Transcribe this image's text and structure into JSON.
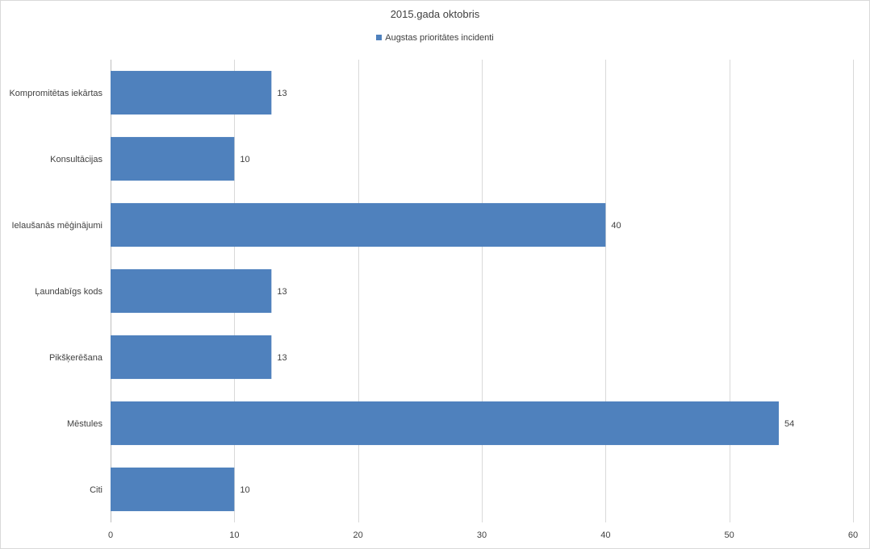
{
  "chart_data": {
    "type": "bar",
    "orientation": "horizontal",
    "title": "2015.gada oktobris",
    "categories": [
      "Kompromitētas iekārtas",
      "Konsultācijas",
      "Ielaušanās mēģinājumi",
      "Ļaundabīgs kods",
      "Pikšķerēšana",
      "Mēstules",
      "Citi"
    ],
    "series": [
      {
        "name": "Augstas prioritātes incidenti",
        "values": [
          13,
          10,
          40,
          13,
          13,
          54,
          10
        ],
        "color": "#4f81bd"
      }
    ],
    "xlim": [
      0,
      60
    ],
    "xticks": [
      0,
      10,
      20,
      30,
      40,
      50,
      60
    ],
    "grid": true,
    "legend_position": "top",
    "data_labels": true
  }
}
